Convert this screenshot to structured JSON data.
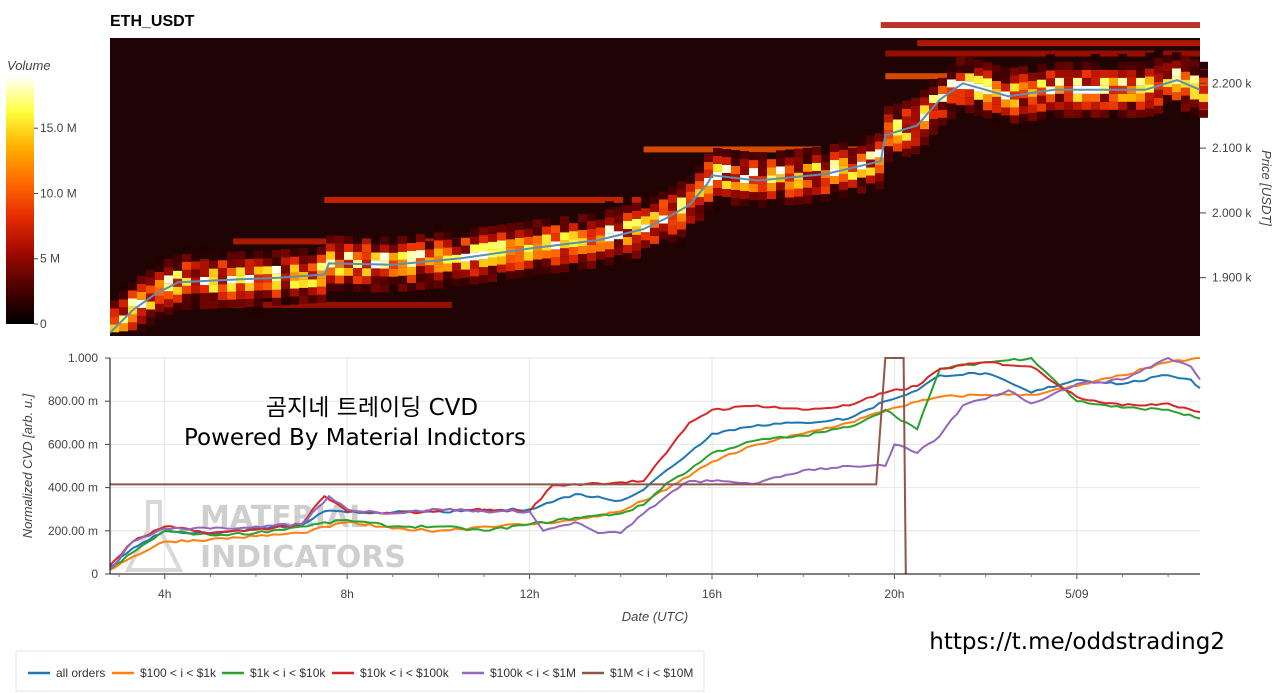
{
  "colors": {
    "heat_bg": "#200303",
    "price_line": "#5a8fb8",
    "all_orders": "#1f77b4",
    "s100_1k": "#ff7f0e",
    "s1k_10k": "#2ca02c",
    "s10k_100k": "#d62728",
    "s100k_1m": "#9467bd",
    "s1m_10m": "#8c564b",
    "grid": "#e6e6e6"
  },
  "chart_data": [
    {
      "type": "heatmap",
      "title": "ETH_USDT",
      "xlabel": "",
      "ylabel": "Price [USDT]",
      "yticks": [
        {
          "value": 1900,
          "label": "1.900 k"
        },
        {
          "value": 2000,
          "label": "2.000 k"
        },
        {
          "value": 2100,
          "label": "2.100 k"
        },
        {
          "value": 2200,
          "label": "2.200 k"
        }
      ],
      "ylim": [
        1810,
        2270
      ],
      "xlim": [
        2.8,
        26.7
      ],
      "colorbar": {
        "title": "Volume",
        "range": [
          0,
          19
        ],
        "ticks": [
          {
            "value": 0,
            "label": "0"
          },
          {
            "value": 5,
            "label": "5 M"
          },
          {
            "value": 10,
            "label": "10.0 M"
          },
          {
            "value": 15,
            "label": "15.0 M"
          }
        ],
        "colors": [
          "#000000",
          "#4a0000",
          "#9e0a00",
          "#e52a00",
          "#ff6a00",
          "#ffb000",
          "#ffff40",
          "#ffffff"
        ]
      },
      "price_series": {
        "x": [
          2.8,
          3.3,
          3.8,
          4.3,
          5.5,
          6.5,
          7.5,
          7.6,
          9.0,
          10.5,
          12.0,
          13.5,
          14.5,
          15.0,
          15.5,
          15.9,
          16.0,
          17.0,
          18.5,
          19.7,
          19.8,
          20.5,
          21.0,
          21.5,
          22.5,
          23.5,
          24.5,
          25.5,
          26.2,
          26.7
        ],
        "y": [
          1815,
          1850,
          1875,
          1893,
          1897,
          1900,
          1905,
          1922,
          1920,
          1930,
          1945,
          1958,
          1975,
          1992,
          2012,
          2045,
          2058,
          2050,
          2060,
          2080,
          2120,
          2135,
          2175,
          2200,
          2180,
          2190,
          2190,
          2190,
          2205,
          2190
        ]
      },
      "hot_bands": [
        {
          "y": 2290,
          "x0": 19.7,
          "x1": 26.7,
          "v": 6
        },
        {
          "y": 2262,
          "x0": 20.5,
          "x1": 26.7,
          "v": 7
        },
        {
          "y": 2246,
          "x0": 19.8,
          "x1": 26.7,
          "v": 6
        },
        {
          "y": 2211,
          "x0": 19.8,
          "x1": 26.7,
          "v": 10
        },
        {
          "y": 2098,
          "x0": 14.5,
          "x1": 19.8,
          "v": 10
        },
        {
          "y": 2020,
          "x0": 7.5,
          "x1": 15.6,
          "v": 8
        },
        {
          "y": 1956,
          "x0": 5.5,
          "x1": 14.8,
          "v": 7
        },
        {
          "y": 1924,
          "x0": 4.0,
          "x1": 7.6,
          "v": 6
        },
        {
          "y": 1858,
          "x0": 4.0,
          "x1": 10.3,
          "v": 6
        }
      ]
    },
    {
      "type": "line",
      "title": "",
      "xlabel": "Date (UTC)",
      "ylabel": "Normalized CVD [arb. u.]",
      "xlim": [
        2.8,
        26.7
      ],
      "ylim": [
        0,
        1000
      ],
      "xticks": [
        {
          "value": 4,
          "label": "4h"
        },
        {
          "value": 8,
          "label": "8h"
        },
        {
          "value": 12,
          "label": "12h"
        },
        {
          "value": 16,
          "label": "16h"
        },
        {
          "value": 20,
          "label": "20h"
        },
        {
          "value": 24,
          "label": "5/09"
        }
      ],
      "yticks": [
        {
          "value": 0,
          "label": "0"
        },
        {
          "value": 200,
          "label": "200.00 m"
        },
        {
          "value": 400,
          "label": "400.00 m"
        },
        {
          "value": 600,
          "label": "600.00 m"
        },
        {
          "value": 800,
          "label": "800.00 m"
        },
        {
          "value": 1000,
          "label": "1.000"
        }
      ],
      "grid": true,
      "legend_position": "bottom-left",
      "series": [
        {
          "name": "all orders",
          "color_key": "all_orders",
          "x": [
            2.8,
            3.3,
            4.0,
            5.0,
            6.0,
            7.0,
            7.5,
            8.0,
            9.0,
            10.5,
            12.0,
            13.0,
            14.0,
            14.5,
            15.0,
            15.5,
            16.0,
            17.0,
            18.0,
            19.0,
            19.8,
            20.5,
            21.0,
            22.0,
            23.0,
            24.0,
            25.0,
            26.0,
            26.5,
            26.7
          ],
          "y": [
            30,
            120,
            200,
            185,
            210,
            225,
            290,
            285,
            285,
            290,
            300,
            370,
            340,
            390,
            480,
            560,
            650,
            690,
            700,
            720,
            800,
            850,
            920,
            930,
            840,
            900,
            880,
            920,
            900,
            860
          ]
        },
        {
          "name": "$100 < i < $1k",
          "color_key": "s100_1k",
          "x": [
            2.8,
            3.3,
            4.0,
            5.0,
            6.0,
            7.0,
            8.0,
            9.0,
            10.0,
            11.0,
            12.0,
            13.0,
            14.0,
            15.0,
            16.0,
            17.0,
            18.0,
            19.0,
            20.0,
            21.0,
            22.0,
            23.0,
            24.0,
            25.0,
            26.0,
            26.7
          ],
          "y": [
            20,
            80,
            150,
            160,
            175,
            190,
            240,
            210,
            200,
            220,
            230,
            250,
            290,
            390,
            520,
            600,
            650,
            700,
            770,
            820,
            830,
            830,
            870,
            920,
            980,
            1000
          ]
        },
        {
          "name": "$1k < i < $10k",
          "color_key": "s1k_10k",
          "x": [
            2.8,
            3.3,
            4.0,
            5.0,
            6.0,
            7.0,
            8.0,
            9.0,
            10.0,
            11.0,
            12.0,
            13.0,
            14.0,
            14.5,
            15.0,
            15.5,
            16.0,
            17.0,
            18.0,
            19.0,
            19.8,
            20.5,
            21.0,
            22.0,
            23.0,
            24.0,
            25.0,
            26.0,
            26.7
          ],
          "y": [
            20,
            100,
            200,
            180,
            190,
            220,
            250,
            220,
            220,
            200,
            230,
            260,
            280,
            320,
            420,
            480,
            560,
            620,
            640,
            680,
            760,
            670,
            950,
            980,
            1000,
            800,
            770,
            760,
            720
          ]
        },
        {
          "name": "$10k < i < $100k",
          "color_key": "s10k_100k",
          "x": [
            2.8,
            3.3,
            4.0,
            5.0,
            6.0,
            7.0,
            7.5,
            8.0,
            9.0,
            10.5,
            12.0,
            12.5,
            13.5,
            14.5,
            15.0,
            15.5,
            16.0,
            17.0,
            18.0,
            19.0,
            19.8,
            20.5,
            21.0,
            22.0,
            23.0,
            24.0,
            25.0,
            26.0,
            26.7
          ],
          "y": [
            40,
            150,
            220,
            190,
            205,
            230,
            360,
            290,
            280,
            300,
            290,
            410,
            420,
            430,
            560,
            700,
            760,
            780,
            760,
            780,
            840,
            870,
            950,
            980,
            960,
            820,
            780,
            790,
            750
          ]
        },
        {
          "name": "$100k < i < $1M",
          "color_key": "s100k_1m",
          "x": [
            2.8,
            3.3,
            4.0,
            5.0,
            6.0,
            7.0,
            7.6,
            8.0,
            9.0,
            10.0,
            11.0,
            12.0,
            12.3,
            13.0,
            13.5,
            14.0,
            14.5,
            15.0,
            15.5,
            16.0,
            17.0,
            18.0,
            19.0,
            19.8,
            20.0,
            20.5,
            21.0,
            21.5,
            22.5,
            23.0,
            24.0,
            25.0,
            26.0,
            26.5,
            26.7
          ],
          "y": [
            20,
            150,
            210,
            210,
            220,
            230,
            360,
            300,
            280,
            300,
            290,
            290,
            200,
            240,
            190,
            190,
            280,
            360,
            430,
            430,
            420,
            480,
            500,
            500,
            600,
            560,
            640,
            780,
            850,
            790,
            880,
            900,
            1000,
            960,
            900
          ]
        },
        {
          "name": "$1M < i < $10M",
          "color_key": "s1m_10m",
          "x": [
            2.8,
            19.6,
            19.8,
            20.0,
            20.2,
            20.25
          ],
          "y": [
            415,
            415,
            1000,
            1000,
            1000,
            0
          ]
        }
      ]
    }
  ],
  "annotations": {
    "line1": "곰지네 트레이딩 CVD",
    "line2": "Powered By Material Indictors",
    "watermark_top": "MATERIAL",
    "watermark_bottom": "INDICATORS",
    "link": "https://t.me/oddstrading2"
  }
}
